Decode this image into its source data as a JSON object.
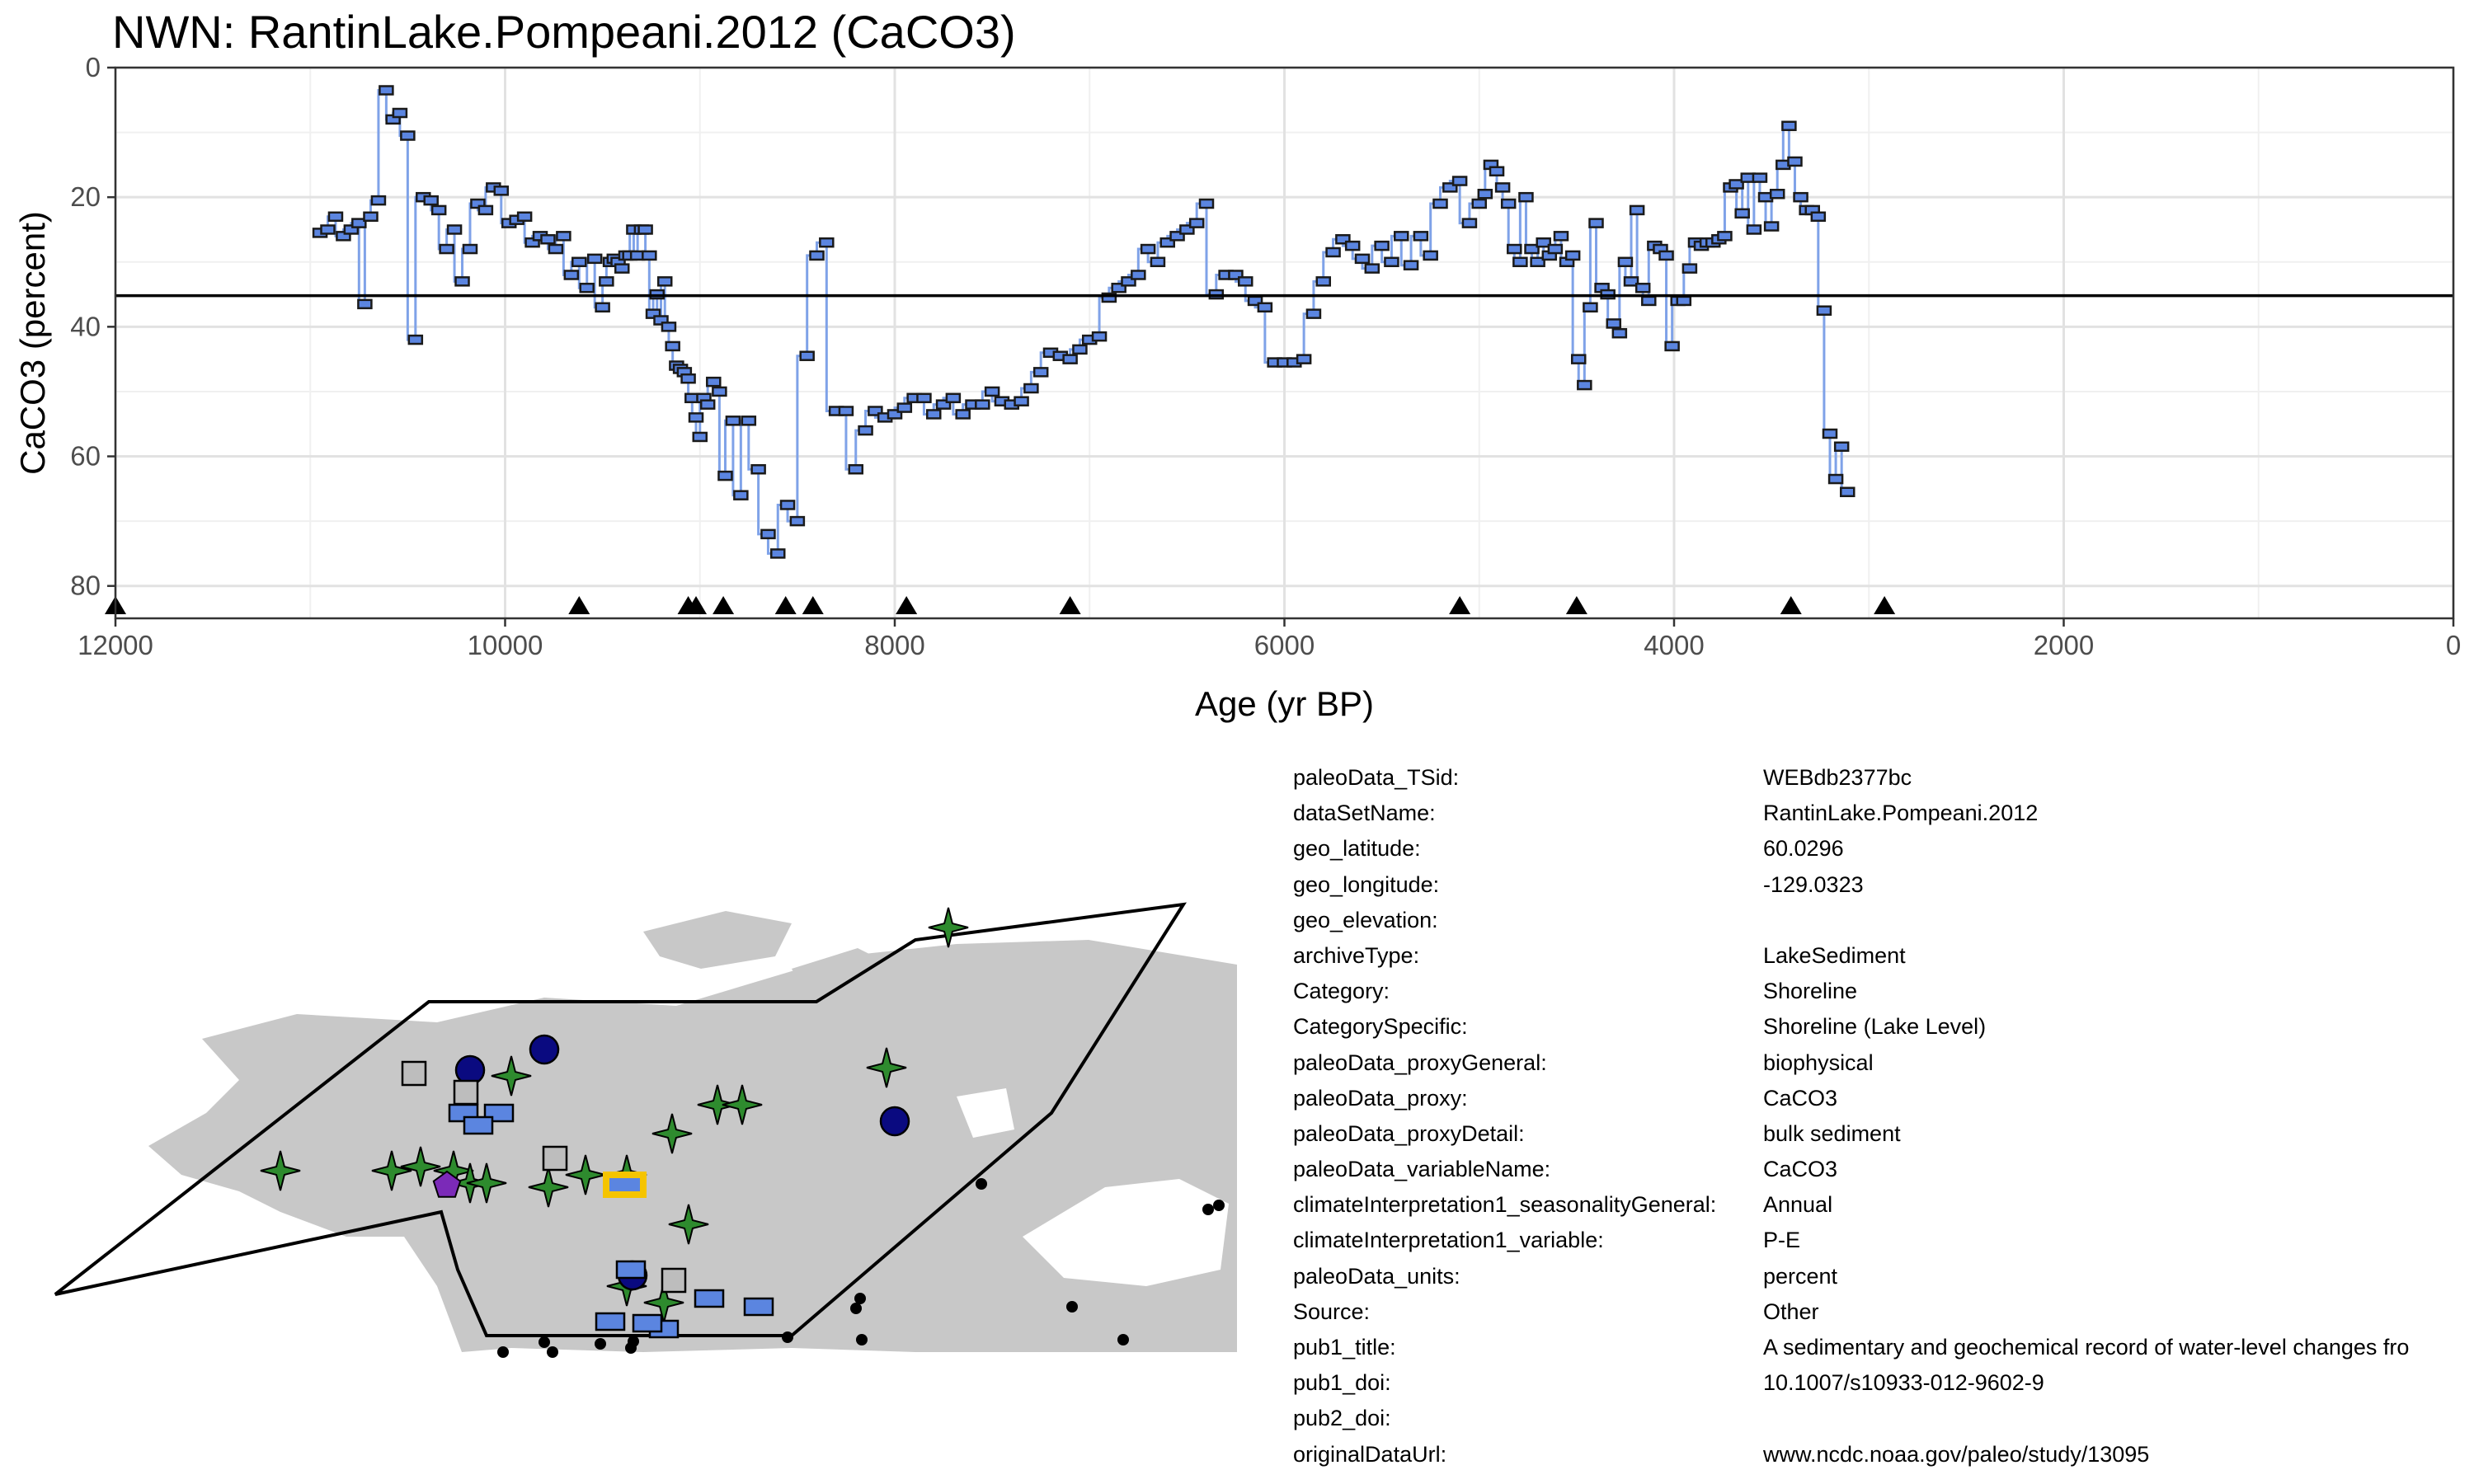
{
  "chart_data": {
    "type": "line",
    "title": "NWN: RantinLake.Pompeani.2012 (CaCO3)",
    "xlabel": "Age (yr BP)",
    "ylabel": "CaCO3 (percent)",
    "xlim": [
      12000,
      0
    ],
    "ylim": [
      0,
      85
    ],
    "x_reversed": true,
    "y_reversed": true,
    "xticks": [
      12000,
      10000,
      8000,
      6000,
      4000,
      2000,
      0
    ],
    "yticks": [
      0,
      20,
      40,
      60,
      80
    ],
    "grid": true,
    "reference_line": 35.2,
    "chronology_ages": [
      12000,
      9620,
      9060,
      9020,
      8880,
      8560,
      8420,
      7940,
      7100,
      5100,
      4500,
      3400,
      2920
    ],
    "series": [
      {
        "color": "#5b85e0",
        "x": [
          10950,
          10910,
          10870,
          10830,
          10790,
          10750,
          10720,
          10690,
          10650,
          10610,
          10575,
          10540,
          10500,
          10460,
          10420,
          10380,
          10340,
          10300,
          10260,
          10220,
          10180,
          10140,
          10100,
          10060,
          10020,
          9980,
          9940,
          9900,
          9860,
          9820,
          9780,
          9740,
          9700,
          9660,
          9620,
          9580,
          9540,
          9500,
          9480,
          9460,
          9440,
          9420,
          9400,
          9380,
          9360,
          9340,
          9320,
          9300,
          9280,
          9260,
          9240,
          9220,
          9200,
          9180,
          9160,
          9140,
          9120,
          9100,
          9080,
          9060,
          9040,
          9020,
          9000,
          8980,
          8960,
          8930,
          8900,
          8870,
          8830,
          8790,
          8750,
          8700,
          8650,
          8600,
          8550,
          8500,
          8450,
          8400,
          8350,
          8300,
          8250,
          8200,
          8150,
          8100,
          8050,
          8000,
          7950,
          7900,
          7850,
          7800,
          7750,
          7700,
          7650,
          7600,
          7550,
          7500,
          7450,
          7400,
          7350,
          7300,
          7250,
          7200,
          7150,
          7100,
          7050,
          7000,
          6950,
          6900,
          6850,
          6800,
          6750,
          6700,
          6650,
          6600,
          6550,
          6500,
          6450,
          6400,
          6350,
          6300,
          6250,
          6200,
          6150,
          6100,
          6050,
          6000,
          5950,
          5900,
          5850,
          5800,
          5750,
          5700,
          5650,
          5600,
          5550,
          5500,
          5450,
          5400,
          5350,
          5300,
          5250,
          5200,
          5150,
          5100,
          5050,
          5000,
          4970,
          4940,
          4910,
          4880,
          4850,
          4820,
          4790,
          4760,
          4730,
          4700,
          4670,
          4640,
          4610,
          4580,
          4550,
          4520,
          4490,
          4460,
          4430,
          4400,
          4370,
          4340,
          4310,
          4280,
          4250,
          4220,
          4190,
          4160,
          4130,
          4100,
          4070,
          4040,
          4010,
          3980,
          3950,
          3920,
          3890,
          3860,
          3830,
          3800,
          3770,
          3740,
          3710,
          3680,
          3650,
          3620,
          3590,
          3560,
          3530,
          3500,
          3470,
          3440,
          3410,
          3380,
          3350,
          3320,
          3290,
          3260,
          3230,
          3200,
          3170,
          3140,
          3110
        ],
        "y": [
          25.5,
          25,
          23,
          26,
          25,
          24,
          36.5,
          23,
          20.5,
          3.5,
          8,
          7,
          10.5,
          42,
          20,
          20.5,
          22,
          28,
          25,
          33,
          28,
          21,
          22,
          18.5,
          19,
          24,
          23.5,
          23,
          27,
          26,
          26.5,
          28,
          26,
          32,
          30,
          34,
          29.5,
          37,
          33,
          30,
          29.5,
          30,
          31,
          29,
          29,
          25,
          29,
          25,
          25,
          29,
          38,
          35,
          39,
          33,
          40,
          43,
          46,
          46.5,
          47,
          48,
          51,
          54,
          57,
          51,
          52,
          48.5,
          50,
          63,
          54.5,
          66,
          54.5,
          62,
          72,
          75,
          67.5,
          70,
          44.5,
          29,
          27,
          53,
          53,
          62,
          56,
          53,
          54,
          53.5,
          52.5,
          51,
          51,
          53.5,
          52,
          51,
          53.5,
          52,
          52,
          50,
          51.5,
          52,
          51.5,
          49.5,
          47,
          44,
          44.5,
          45,
          43.5,
          42,
          41.5,
          35.5,
          34,
          33,
          32,
          28,
          30,
          27,
          26,
          25,
          24,
          21,
          35,
          32,
          32,
          33,
          36,
          37,
          45.5,
          45.5,
          45.5,
          45,
          38,
          33,
          28.5,
          26.5,
          27.5,
          29.5,
          31,
          27.5,
          30,
          26,
          30.5,
          26,
          29,
          21,
          18.5,
          17.5,
          24,
          21,
          19.5,
          15,
          16,
          18.5,
          21,
          28,
          30,
          20,
          28,
          30,
          27,
          29,
          28,
          26,
          30,
          29,
          45,
          49,
          37,
          24,
          34,
          35,
          39.5,
          41,
          30,
          33,
          22,
          34,
          36,
          27.5,
          28,
          29,
          43,
          36,
          36,
          31,
          27,
          27.5,
          27,
          27,
          26.5,
          26,
          18.5,
          18,
          22.5,
          17,
          25,
          17,
          20,
          24.5,
          19.5,
          15,
          9,
          14.5,
          20,
          22,
          22,
          23,
          37.5,
          56.5,
          63.5,
          58.5,
          65.5
        ]
      }
    ]
  },
  "info_table": [
    {
      "key": "paleoData_TSid:",
      "value": "WEBdb2377bc"
    },
    {
      "key": "dataSetName:",
      "value": "RantinLake.Pompeani.2012"
    },
    {
      "key": "geo_latitude:",
      "value": "60.0296"
    },
    {
      "key": "geo_longitude:",
      "value": "-129.0323"
    },
    {
      "key": "geo_elevation:",
      "value": ""
    },
    {
      "key": "archiveType:",
      "value": "LakeSediment"
    },
    {
      "key": "Category:",
      "value": "Shoreline"
    },
    {
      "key": "CategorySpecific:",
      "value": "Shoreline (Lake Level)"
    },
    {
      "key": "paleoData_proxyGeneral:",
      "value": "biophysical"
    },
    {
      "key": "paleoData_proxy:",
      "value": "CaCO3"
    },
    {
      "key": "paleoData_proxyDetail:",
      "value": "bulk sediment"
    },
    {
      "key": "paleoData_variableName:",
      "value": "CaCO3"
    },
    {
      "key": "climateInterpretation1_seasonalityGeneral:",
      "value": "Annual"
    },
    {
      "key": "climateInterpretation1_variable:",
      "value": "P-E"
    },
    {
      "key": "paleoData_units:",
      "value": "percent"
    },
    {
      "key": "Source:",
      "value": "Other"
    },
    {
      "key": "pub1_title:",
      "value": "A sedimentary and geochemical record of water-level changes fro"
    },
    {
      "key": "pub1_doi:",
      "value": "10.1007/s10933-012-9602-9"
    },
    {
      "key": "pub2_doi:",
      "value": ""
    },
    {
      "key": "originalDataUrl:",
      "value": "www.ncdc.noaa.gov/paleo/study/13095"
    }
  ],
  "map": {
    "land_color": "#c8c8c8",
    "sites": [
      {
        "shape": "star",
        "color": "#2e8b2e"
      },
      {
        "shape": "circle",
        "color": "#0a0a80"
      },
      {
        "shape": "square",
        "color": "#bdbdbd"
      },
      {
        "shape": "rect",
        "color": "#5b85e0"
      },
      {
        "shape": "pentagon",
        "color": "#7b2ab8"
      },
      {
        "shape": "dot",
        "color": "#000000"
      }
    ],
    "highlight_color": "#f5c400"
  }
}
